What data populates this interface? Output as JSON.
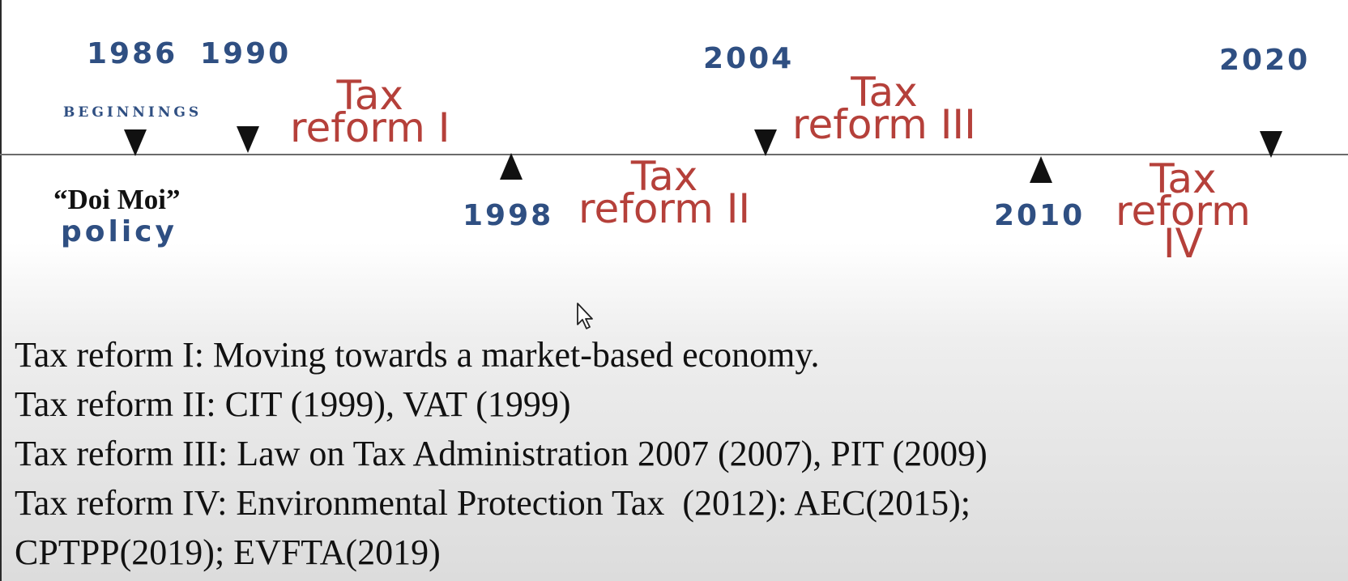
{
  "timeline": {
    "events": [
      {
        "year": "1986"
      },
      {
        "year": "1990"
      },
      {
        "year": "1998"
      },
      {
        "year": "2004"
      },
      {
        "year": "2010"
      },
      {
        "year": "2020"
      }
    ],
    "beginnings_label": "BEGINNINGS",
    "doi_moi_label": "“Doi Moi”",
    "policy_label": "policy",
    "phases": [
      {
        "line1": "Tax",
        "line2": "reform I"
      },
      {
        "line1": "Tax",
        "line2": "reform II"
      },
      {
        "line1": "Tax",
        "line2": "reform III"
      },
      {
        "line1": "Tax",
        "line2": "reform",
        "line3": "IV"
      }
    ]
  },
  "notes": [
    "Tax reform I: Moving towards a market-based economy.",
    "Tax reform II: CIT (1999), VAT (1999)",
    "Tax reform III: Law on Tax Administration 2007 (2007), PIT (2009)",
    "Tax reform IV: Environmental Protection Tax  (2012): AEC(2015);",
    "CPTPP(2019); EVFTA(2019)"
  ],
  "colors": {
    "year_blue": "#2f4f82",
    "phase_red": "#b5403a",
    "marker_black": "#111111"
  },
  "icons": {
    "marker_down": "triangle-down-icon",
    "marker_up": "triangle-up-icon",
    "cursor": "mouse-pointer-icon"
  }
}
